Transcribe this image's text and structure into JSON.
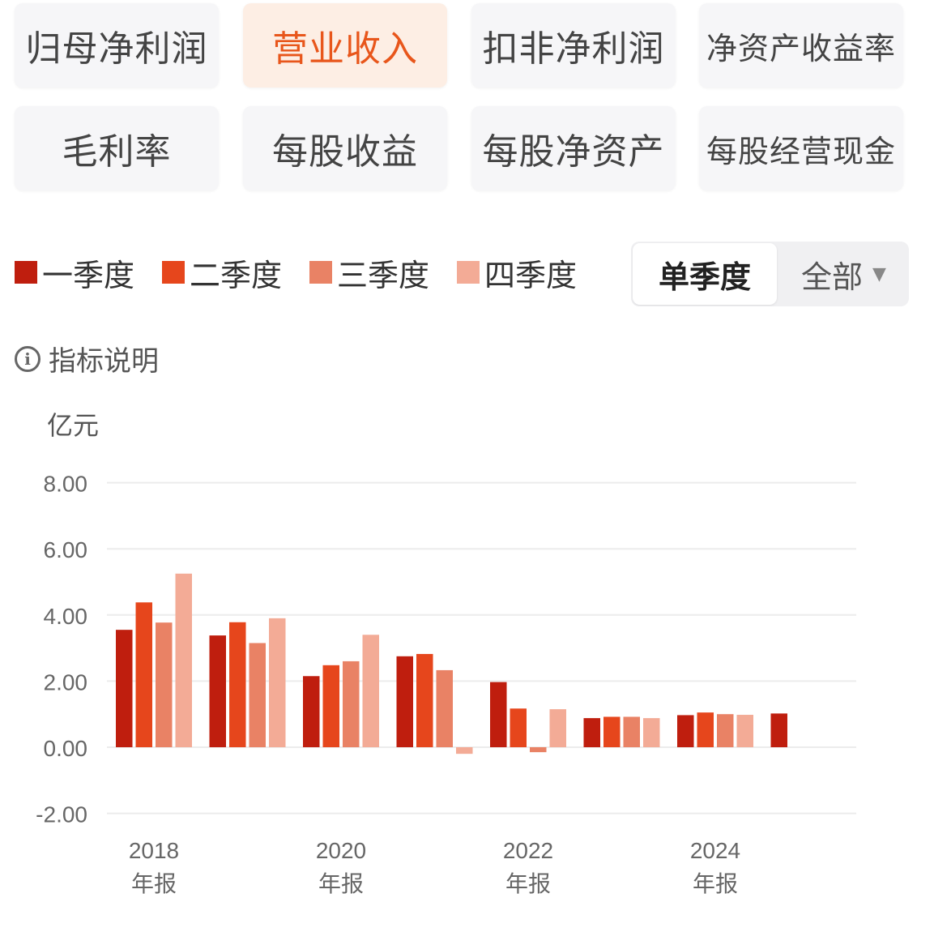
{
  "tabs": [
    {
      "label": "归母净利润",
      "active": false
    },
    {
      "label": "营业收入",
      "active": true
    },
    {
      "label": "扣非净利润",
      "active": false
    },
    {
      "label": "净资产收益率",
      "active": false
    },
    {
      "label": "毛利率",
      "active": false
    },
    {
      "label": "每股收益",
      "active": false
    },
    {
      "label": "每股净资产",
      "active": false
    },
    {
      "label": "每股经营现金",
      "active": false
    }
  ],
  "segment": {
    "active_label": "单季度",
    "other_label": "全部",
    "arrow": "▼"
  },
  "info_label": "指标说明",
  "colors": {
    "accent": "#e8561b",
    "q1": "#bf1e0e",
    "q2": "#e6461c",
    "q3": "#e98265",
    "q4": "#f3ab96"
  },
  "chart_data": {
    "type": "bar",
    "ylabel": "亿元",
    "ylim": [
      -2,
      8
    ],
    "yticks": [
      -2,
      0,
      2,
      4,
      6,
      8
    ],
    "ytick_labels": [
      "-2.00",
      "0.00",
      "2.00",
      "4.00",
      "6.00",
      "8.00"
    ],
    "grid": true,
    "legend_position": "top-left",
    "categories": [
      "2018",
      "2019",
      "2020",
      "2021",
      "2022",
      "2023",
      "2024",
      "2025"
    ],
    "xtick_labels": [
      {
        "category": "2018",
        "year": "2018",
        "suffix": "年报"
      },
      {
        "category": "2020",
        "year": "2020",
        "suffix": "年报"
      },
      {
        "category": "2022",
        "year": "2022",
        "suffix": "年报"
      },
      {
        "category": "2024",
        "year": "2024",
        "suffix": "年报"
      }
    ],
    "series": [
      {
        "name": "一季度",
        "color": "#bf1e0e",
        "values": [
          3.55,
          3.38,
          2.15,
          2.75,
          1.97,
          0.88,
          0.97,
          1.02
        ]
      },
      {
        "name": "二季度",
        "color": "#e6461c",
        "values": [
          4.38,
          3.78,
          2.48,
          2.82,
          1.17,
          0.92,
          1.05,
          null
        ]
      },
      {
        "name": "三季度",
        "color": "#e98265",
        "values": [
          3.77,
          3.15,
          2.6,
          2.33,
          -0.15,
          0.92,
          1.0,
          null
        ]
      },
      {
        "name": "四季度",
        "color": "#f3ab96",
        "values": [
          5.25,
          3.9,
          3.4,
          -0.2,
          1.15,
          0.88,
          0.98,
          null
        ]
      }
    ]
  }
}
